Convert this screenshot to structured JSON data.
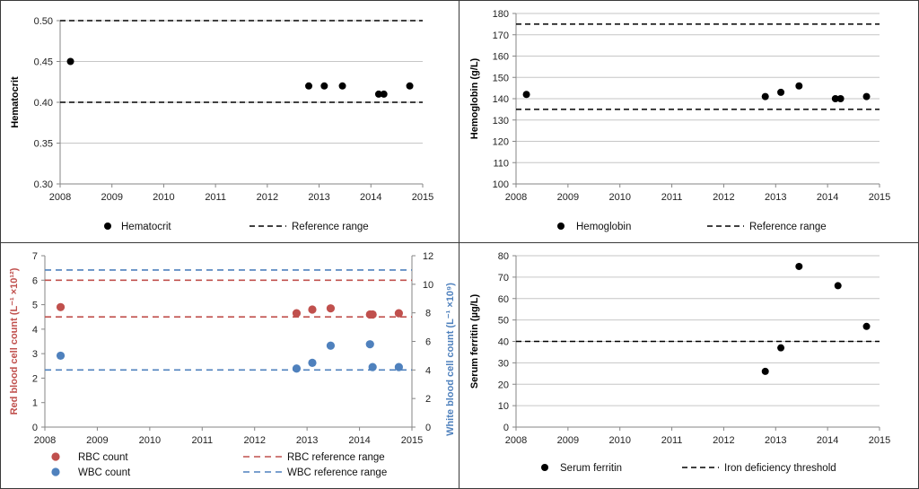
{
  "colors": {
    "black": "#000000",
    "red": "#c0504d",
    "blue": "#4f81bd",
    "grid": "#c6c6c6",
    "axis": "#868686"
  },
  "chart_data": [
    {
      "id": "hematocrit",
      "type": "scatter",
      "ylabel": "Hematocrit",
      "ylim": [
        0.3,
        0.5
      ],
      "yticks": [
        "0.30",
        "0.35",
        "0.40",
        "0.45",
        "0.50"
      ],
      "xlim": [
        2008,
        2015
      ],
      "xticks": [
        "2008",
        "2009",
        "2010",
        "2011",
        "2012",
        "2013",
        "2014",
        "2015"
      ],
      "grid": true,
      "legend_placement": "bottom",
      "series": [
        {
          "name": "Hematocrit",
          "kind": "points",
          "color": "#000000",
          "x": [
            2008.2,
            2012.8,
            2013.1,
            2013.45,
            2014.15,
            2014.25,
            2014.75
          ],
          "y": [
            0.45,
            0.42,
            0.42,
            0.42,
            0.41,
            0.41,
            0.42
          ]
        },
        {
          "name": "Reference range",
          "kind": "hlines",
          "color": "#000000",
          "y": [
            0.4,
            0.5
          ]
        }
      ]
    },
    {
      "id": "hemoglobin",
      "type": "scatter",
      "ylabel": "Hemoglobin (g/L)",
      "ylim": [
        100,
        180
      ],
      "yticks": [
        "100",
        "110",
        "120",
        "130",
        "140",
        "150",
        "160",
        "170",
        "180"
      ],
      "xlim": [
        2008,
        2015
      ],
      "xticks": [
        "2008",
        "2009",
        "2010",
        "2011",
        "2012",
        "2013",
        "2014",
        "2015"
      ],
      "grid": true,
      "legend_placement": "bottom",
      "series": [
        {
          "name": "Hemoglobin",
          "kind": "points",
          "color": "#000000",
          "x": [
            2008.2,
            2012.8,
            2013.1,
            2013.45,
            2014.15,
            2014.25,
            2014.75
          ],
          "y": [
            142,
            141,
            143,
            146,
            140,
            140,
            141
          ]
        },
        {
          "name": "Reference range",
          "kind": "hlines",
          "color": "#000000",
          "y": [
            135,
            175
          ]
        }
      ]
    },
    {
      "id": "blood-counts",
      "type": "scatter",
      "ylabel": "Red blood cell count (L⁻¹ ×10¹²)",
      "ylabel_right": "White blood cell count (L⁻¹ ×10⁹)",
      "ylim": [
        0,
        7
      ],
      "yticks": [
        "0",
        "1",
        "2",
        "3",
        "4",
        "5",
        "6",
        "7"
      ],
      "ylim_right": [
        0,
        12
      ],
      "yticks_right": [
        "0",
        "2",
        "4",
        "6",
        "8",
        "10",
        "12"
      ],
      "xlim": [
        2008,
        2015
      ],
      "xticks": [
        "2008",
        "2009",
        "2010",
        "2011",
        "2012",
        "2013",
        "2014",
        "2015"
      ],
      "grid": false,
      "legend_placement": "bottom",
      "series": [
        {
          "name": "RBC count",
          "kind": "points",
          "axis": "left",
          "color": "#c0504d",
          "x": [
            2008.3,
            2012.8,
            2013.1,
            2013.45,
            2014.2,
            2014.25,
            2014.75
          ],
          "y": [
            4.9,
            4.65,
            4.8,
            4.85,
            4.6,
            4.6,
            4.65
          ]
        },
        {
          "name": "WBC count",
          "kind": "points",
          "axis": "right",
          "color": "#4f81bd",
          "x": [
            2008.3,
            2012.8,
            2013.1,
            2013.45,
            2014.2,
            2014.25,
            2014.75
          ],
          "y": [
            5.0,
            4.1,
            4.5,
            5.7,
            5.8,
            4.2,
            4.2
          ]
        },
        {
          "name": "RBC reference range",
          "kind": "hlines",
          "axis": "left",
          "color": "#c0504d",
          "y": [
            4.5,
            6.0
          ]
        },
        {
          "name": "WBC reference range",
          "kind": "hlines",
          "axis": "right",
          "color": "#4f81bd",
          "y": [
            4.0,
            11.0
          ]
        }
      ]
    },
    {
      "id": "ferritin",
      "type": "scatter",
      "ylabel": "Serum ferritin (µg/L)",
      "ylim": [
        0,
        80
      ],
      "yticks": [
        "0",
        "10",
        "20",
        "30",
        "40",
        "50",
        "60",
        "70",
        "80"
      ],
      "xlim": [
        2008,
        2015
      ],
      "xticks": [
        "2008",
        "2009",
        "2010",
        "2011",
        "2012",
        "2013",
        "2014",
        "2015"
      ],
      "grid": true,
      "legend_placement": "bottom",
      "series": [
        {
          "name": "Serum ferritin",
          "kind": "points",
          "color": "#000000",
          "x": [
            2012.8,
            2013.1,
            2013.45,
            2014.2,
            2014.75
          ],
          "y": [
            26,
            37,
            75,
            66,
            47
          ]
        },
        {
          "name": "Iron deficiency threshold",
          "kind": "hlines",
          "color": "#000000",
          "y": [
            40
          ]
        }
      ]
    }
  ]
}
